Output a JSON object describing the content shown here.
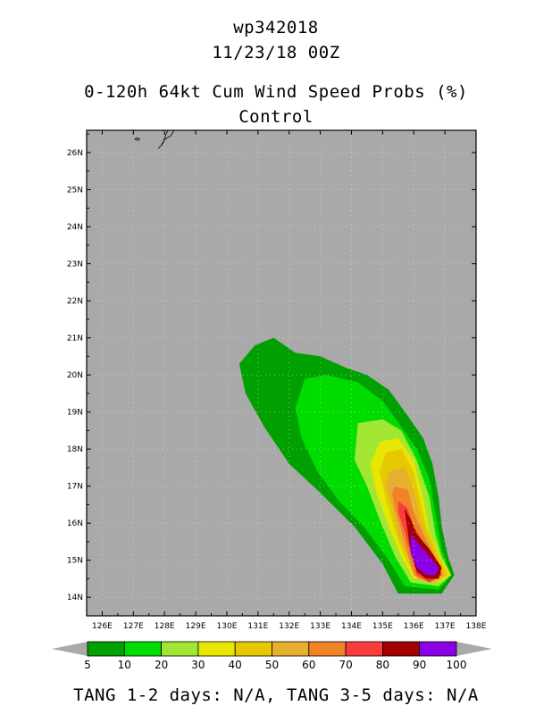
{
  "header": {
    "storm_id": "wp342018",
    "datetime": "11/23/18 00Z",
    "product": "0-120h 64kt Cum Wind Speed Probs (%)",
    "member": "Control"
  },
  "footer": {
    "tang_text": "TANG 1-2 days:  N/A,   TANG 3-5 days:  N/A"
  },
  "colors": {
    "background": "#a9a9a9",
    "land_outline": "#000000",
    "grid": "#e6e6e6"
  },
  "chart_data": {
    "type": "heatmap",
    "title": "0-120h 64kt Cum Wind Speed Probs (%)",
    "subtitle": "Control",
    "x_ticks": [
      "126E",
      "127E",
      "128E",
      "129E",
      "130E",
      "131E",
      "132E",
      "133E",
      "134E",
      "135E",
      "136E",
      "137E",
      "138E"
    ],
    "y_ticks": [
      "14N",
      "15N",
      "16N",
      "17N",
      "18N",
      "19N",
      "20N",
      "21N",
      "22N",
      "23N",
      "24N",
      "25N",
      "26N"
    ],
    "xlim": [
      125.5,
      138.0
    ],
    "ylim": [
      13.5,
      26.6
    ],
    "colorbar": {
      "levels": [
        "5",
        "10",
        "20",
        "30",
        "40",
        "50",
        "60",
        "70",
        "80",
        "90",
        "100"
      ],
      "colors": [
        "#00a000",
        "#00dc00",
        "#a0e632",
        "#e6e600",
        "#e6c800",
        "#e6af2d",
        "#f08228",
        "#fa3c3c",
        "#a00000",
        "#8c00e6"
      ]
    },
    "contours": [
      {
        "level": 5,
        "color": "#00a000",
        "polygon": [
          [
            131.5,
            21.0
          ],
          [
            132.2,
            20.6
          ],
          [
            133.0,
            20.5
          ],
          [
            133.8,
            20.2
          ],
          [
            134.5,
            20.0
          ],
          [
            135.2,
            19.6
          ],
          [
            135.8,
            18.9
          ],
          [
            136.3,
            18.3
          ],
          [
            136.6,
            17.6
          ],
          [
            136.8,
            16.7
          ],
          [
            136.9,
            15.9
          ],
          [
            137.1,
            15.1
          ],
          [
            137.3,
            14.6
          ],
          [
            136.9,
            14.1
          ],
          [
            135.5,
            14.1
          ],
          [
            135.0,
            14.9
          ],
          [
            134.1,
            15.9
          ],
          [
            132.9,
            16.9
          ],
          [
            132.0,
            17.6
          ],
          [
            131.2,
            18.6
          ],
          [
            130.6,
            19.5
          ],
          [
            130.4,
            20.3
          ],
          [
            130.9,
            20.8
          ]
        ]
      },
      {
        "level": 10,
        "color": "#00dc00",
        "polygon": [
          [
            132.5,
            19.9
          ],
          [
            133.2,
            20.0
          ],
          [
            134.2,
            19.8
          ],
          [
            135.0,
            19.3
          ],
          [
            135.6,
            18.6
          ],
          [
            136.1,
            18.0
          ],
          [
            136.5,
            17.2
          ],
          [
            136.7,
            16.2
          ],
          [
            136.9,
            15.3
          ],
          [
            137.2,
            14.6
          ],
          [
            136.8,
            14.2
          ],
          [
            135.7,
            14.3
          ],
          [
            135.2,
            15.0
          ],
          [
            134.4,
            15.9
          ],
          [
            133.6,
            16.6
          ],
          [
            132.9,
            17.4
          ],
          [
            132.4,
            18.3
          ],
          [
            132.2,
            19.1
          ]
        ]
      },
      {
        "level": 20,
        "color": "#a0e632",
        "polygon": [
          [
            134.2,
            18.7
          ],
          [
            135.0,
            18.8
          ],
          [
            135.6,
            18.5
          ],
          [
            136.1,
            17.7
          ],
          [
            136.5,
            16.7
          ],
          [
            136.7,
            15.7
          ],
          [
            136.9,
            15.1
          ],
          [
            137.2,
            14.6
          ],
          [
            136.8,
            14.3
          ],
          [
            135.9,
            14.4
          ],
          [
            135.4,
            15.1
          ],
          [
            134.9,
            16.1
          ],
          [
            134.5,
            17.0
          ],
          [
            134.1,
            17.7
          ]
        ]
      },
      {
        "level": 30,
        "color": "#e6e600",
        "polygon": [
          [
            134.9,
            18.2
          ],
          [
            135.5,
            18.3
          ],
          [
            136.0,
            17.7
          ],
          [
            136.3,
            16.7
          ],
          [
            136.5,
            15.8
          ],
          [
            136.8,
            15.2
          ],
          [
            137.2,
            14.6
          ],
          [
            136.8,
            14.4
          ],
          [
            136.0,
            14.5
          ],
          [
            135.6,
            15.1
          ],
          [
            135.2,
            15.9
          ],
          [
            134.8,
            16.8
          ],
          [
            134.6,
            17.6
          ]
        ]
      },
      {
        "level": 40,
        "color": "#e6c800",
        "polygon": [
          [
            135.1,
            17.9
          ],
          [
            135.6,
            18.0
          ],
          [
            136.0,
            17.4
          ],
          [
            136.2,
            16.6
          ],
          [
            136.4,
            15.9
          ],
          [
            136.7,
            15.3
          ],
          [
            137.1,
            14.6
          ],
          [
            136.7,
            14.4
          ],
          [
            136.1,
            14.5
          ],
          [
            135.7,
            15.1
          ],
          [
            135.4,
            15.8
          ],
          [
            135.1,
            16.7
          ],
          [
            134.9,
            17.4
          ]
        ]
      },
      {
        "level": 50,
        "color": "#e6af2d",
        "polygon": [
          [
            135.2,
            17.4
          ],
          [
            135.7,
            17.5
          ],
          [
            136.0,
            16.9
          ],
          [
            136.2,
            16.1
          ],
          [
            136.5,
            15.5
          ],
          [
            137.0,
            14.6
          ],
          [
            136.6,
            14.4
          ],
          [
            136.1,
            14.5
          ],
          [
            135.8,
            15.1
          ],
          [
            135.5,
            15.7
          ],
          [
            135.3,
            16.5
          ],
          [
            135.1,
            17.0
          ]
        ]
      },
      {
        "level": 60,
        "color": "#f08228",
        "polygon": [
          [
            135.4,
            17.0
          ],
          [
            135.8,
            16.9
          ],
          [
            136.0,
            16.3
          ],
          [
            136.3,
            15.7
          ],
          [
            136.8,
            14.9
          ],
          [
            136.9,
            14.6
          ],
          [
            136.5,
            14.4
          ],
          [
            136.0,
            14.6
          ],
          [
            135.8,
            15.2
          ],
          [
            135.6,
            15.8
          ],
          [
            135.4,
            16.4
          ],
          [
            135.3,
            16.8
          ]
        ]
      },
      {
        "level": 70,
        "color": "#fa3c3c",
        "polygon": [
          [
            135.5,
            16.6
          ],
          [
            135.8,
            16.4
          ],
          [
            136.0,
            15.9
          ],
          [
            136.3,
            15.5
          ],
          [
            136.8,
            14.9
          ],
          [
            136.9,
            14.6
          ],
          [
            136.5,
            14.4
          ],
          [
            136.1,
            14.6
          ],
          [
            135.9,
            15.2
          ],
          [
            135.7,
            15.8
          ],
          [
            135.5,
            16.3
          ]
        ]
      },
      {
        "level": 80,
        "color": "#a00000",
        "polygon": [
          [
            135.7,
            16.4
          ],
          [
            135.9,
            16.1
          ],
          [
            136.1,
            15.7
          ],
          [
            136.5,
            15.3
          ],
          [
            136.9,
            14.8
          ],
          [
            136.8,
            14.5
          ],
          [
            136.4,
            14.5
          ],
          [
            136.1,
            14.7
          ],
          [
            135.9,
            15.2
          ],
          [
            135.8,
            15.8
          ]
        ]
      },
      {
        "level": 90,
        "color": "#8c00e6",
        "polygon": [
          [
            135.9,
            15.7
          ],
          [
            136.2,
            15.4
          ],
          [
            136.5,
            15.1
          ],
          [
            136.8,
            14.8
          ],
          [
            136.7,
            14.6
          ],
          [
            136.4,
            14.6
          ],
          [
            136.1,
            14.8
          ],
          [
            135.9,
            15.2
          ]
        ]
      }
    ],
    "land": [
      [
        [
          128.2,
          26.7
        ],
        [
          128.3,
          26.6
        ],
        [
          128.2,
          26.45
        ],
        [
          128.0,
          26.35
        ],
        [
          127.9,
          26.2
        ],
        [
          127.8,
          26.1
        ],
        [
          127.95,
          26.25
        ],
        [
          128.05,
          26.5
        ],
        [
          128.15,
          26.65
        ]
      ],
      [
        [
          127.1,
          26.4
        ],
        [
          127.2,
          26.37
        ],
        [
          127.15,
          26.33
        ],
        [
          127.05,
          26.35
        ]
      ]
    ]
  }
}
